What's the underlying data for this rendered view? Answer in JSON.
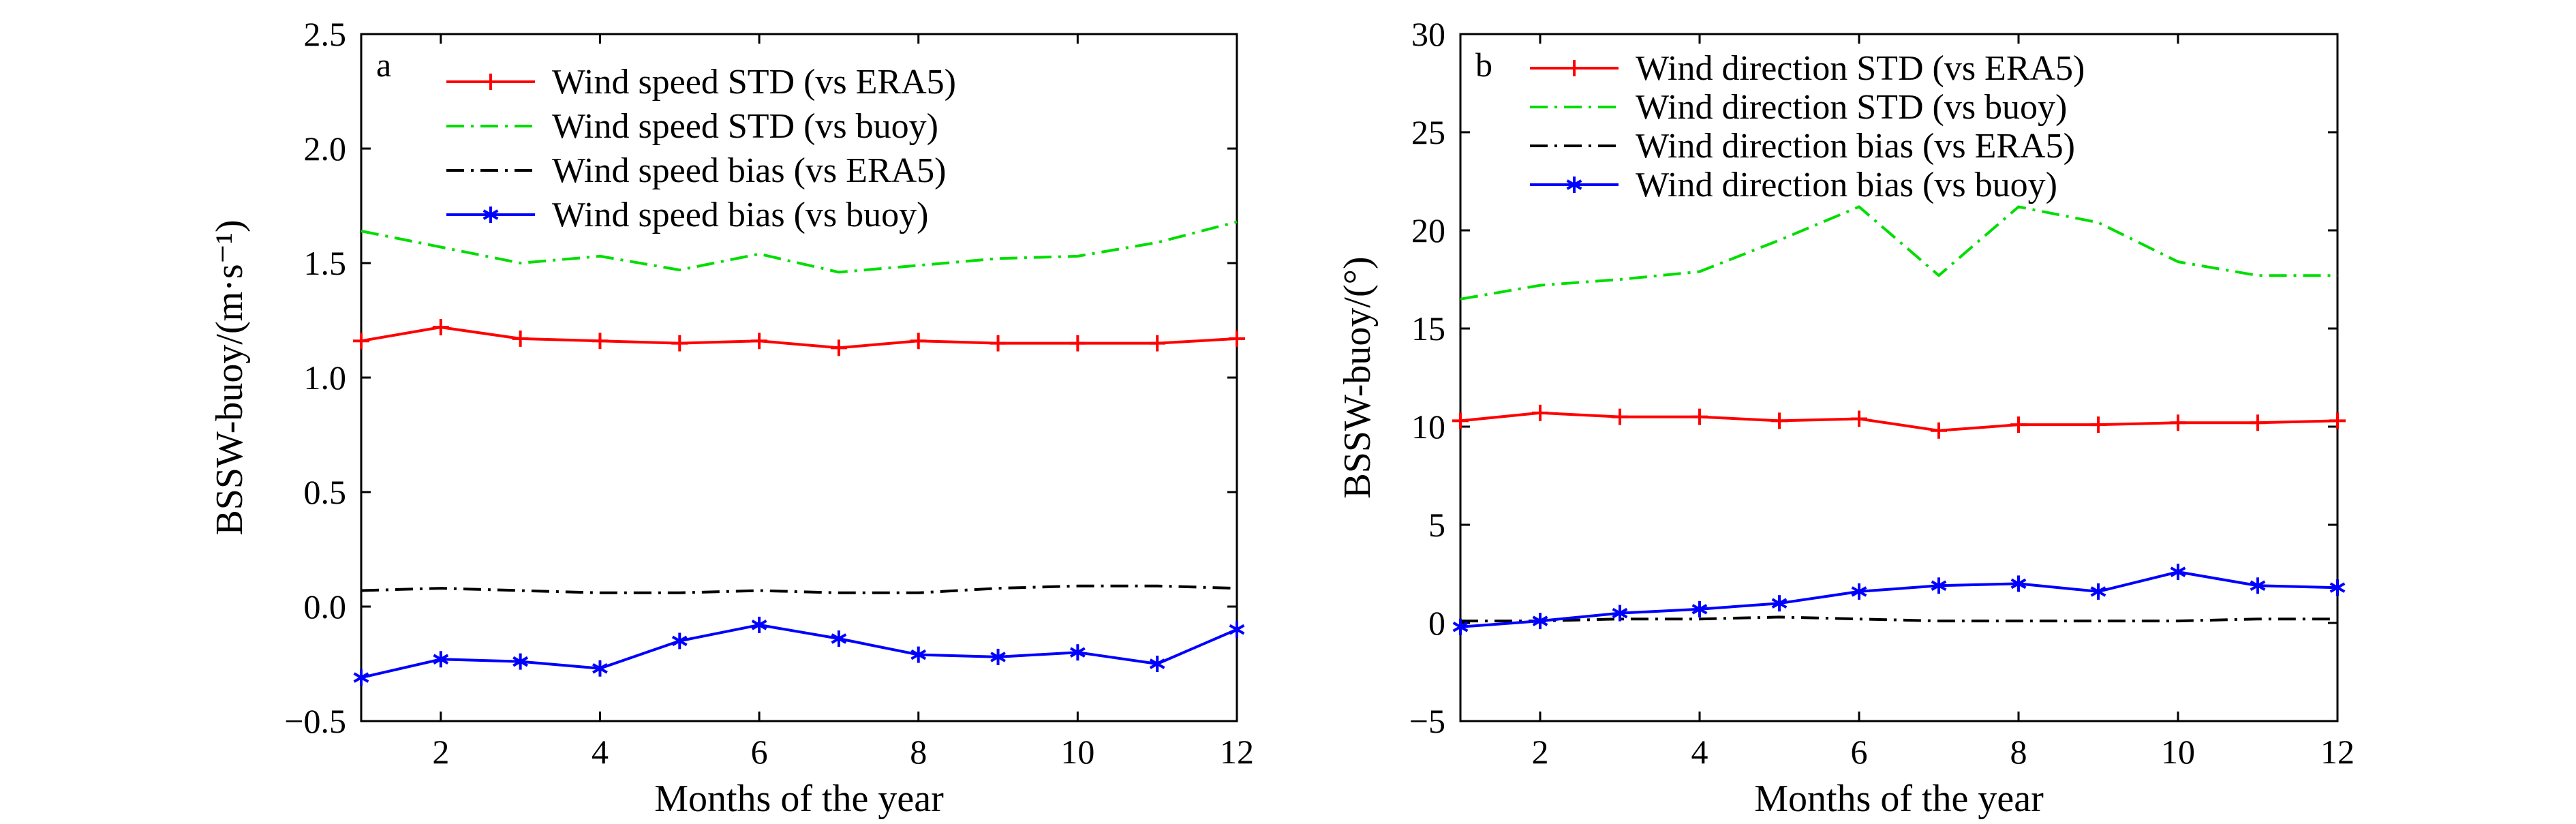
{
  "chart_data": [
    {
      "type": "line",
      "panel_label": "a",
      "xlabel": "Months of the year",
      "ylabel": "BSSW-buoy/(m·s⁻¹)",
      "xlim": [
        1,
        12
      ],
      "ylim": [
        -0.5,
        2.5
      ],
      "x_ticks": [
        2,
        4,
        6,
        8,
        10,
        12
      ],
      "x_tick_labels": [
        "2",
        "4",
        "6",
        "8",
        "10",
        "12"
      ],
      "y_ticks": [
        -0.5,
        0.0,
        0.5,
        1.0,
        1.5,
        2.0,
        2.5
      ],
      "y_tick_labels": [
        "−0.5",
        "0.0",
        "0.5",
        "1.0",
        "1.5",
        "2.0",
        "2.5"
      ],
      "grid": false,
      "legend_position": "top-center",
      "x": [
        1,
        2,
        3,
        4,
        5,
        6,
        7,
        8,
        9,
        10,
        11,
        12
      ],
      "series": [
        {
          "name": "Wind speed STD (vs ERA5)",
          "color": "#ff0000",
          "line_style": "solid",
          "marker": "plus",
          "values": [
            1.16,
            1.22,
            1.17,
            1.16,
            1.15,
            1.16,
            1.13,
            1.16,
            1.15,
            1.15,
            1.15,
            1.17
          ]
        },
        {
          "name": "Wind speed STD (vs buoy)",
          "color": "#00dd00",
          "line_style": "dash-dot",
          "marker": "none",
          "values": [
            1.64,
            1.57,
            1.5,
            1.53,
            1.47,
            1.54,
            1.46,
            1.49,
            1.52,
            1.53,
            1.59,
            1.68
          ]
        },
        {
          "name": "Wind speed bias (vs ERA5)",
          "color": "#000000",
          "line_style": "dash-dot",
          "marker": "none",
          "values": [
            0.07,
            0.08,
            0.07,
            0.06,
            0.06,
            0.07,
            0.06,
            0.06,
            0.08,
            0.09,
            0.09,
            0.08
          ]
        },
        {
          "name": "Wind speed bias (vs buoy)",
          "color": "#0000ff",
          "line_style": "solid",
          "marker": "asterisk",
          "values": [
            -0.31,
            -0.23,
            -0.24,
            -0.27,
            -0.15,
            -0.08,
            -0.14,
            -0.21,
            -0.22,
            -0.2,
            -0.25,
            -0.1
          ]
        }
      ]
    },
    {
      "type": "line",
      "panel_label": "b",
      "xlabel": "Months of the year",
      "ylabel": "BSSW-buoy/(°)",
      "xlim": [
        1,
        12
      ],
      "ylim": [
        -5,
        30
      ],
      "x_ticks": [
        2,
        4,
        6,
        8,
        10,
        12
      ],
      "x_tick_labels": [
        "2",
        "4",
        "6",
        "8",
        "10",
        "12"
      ],
      "y_ticks": [
        -5,
        0,
        5,
        10,
        15,
        20,
        25,
        30
      ],
      "y_tick_labels": [
        "−5",
        "0",
        "5",
        "10",
        "15",
        "20",
        "25",
        "30"
      ],
      "grid": false,
      "legend_position": "top-center",
      "x": [
        1,
        2,
        3,
        4,
        5,
        6,
        7,
        8,
        9,
        10,
        11,
        12
      ],
      "series": [
        {
          "name": "Wind direction STD (vs ERA5)",
          "color": "#ff0000",
          "line_style": "solid",
          "marker": "plus",
          "values": [
            10.3,
            10.7,
            10.5,
            10.5,
            10.3,
            10.4,
            9.8,
            10.1,
            10.1,
            10.2,
            10.2,
            10.3
          ]
        },
        {
          "name": "Wind direction STD (vs buoy)",
          "color": "#00dd00",
          "line_style": "dash-dot",
          "marker": "none",
          "values": [
            16.5,
            17.2,
            17.5,
            17.9,
            19.5,
            21.2,
            17.7,
            21.2,
            20.4,
            18.4,
            17.7,
            17.7
          ]
        },
        {
          "name": "Wind direction bias (vs ERA5)",
          "color": "#000000",
          "line_style": "dash-dot",
          "marker": "none",
          "values": [
            0.1,
            0.1,
            0.2,
            0.2,
            0.3,
            0.2,
            0.1,
            0.1,
            0.1,
            0.1,
            0.2,
            0.2
          ]
        },
        {
          "name": "Wind direction bias (vs buoy)",
          "color": "#0000ff",
          "line_style": "solid",
          "marker": "asterisk",
          "values": [
            -0.2,
            0.1,
            0.5,
            0.7,
            1.0,
            1.6,
            1.9,
            2.0,
            1.6,
            2.6,
            1.9,
            1.8
          ]
        }
      ]
    }
  ]
}
